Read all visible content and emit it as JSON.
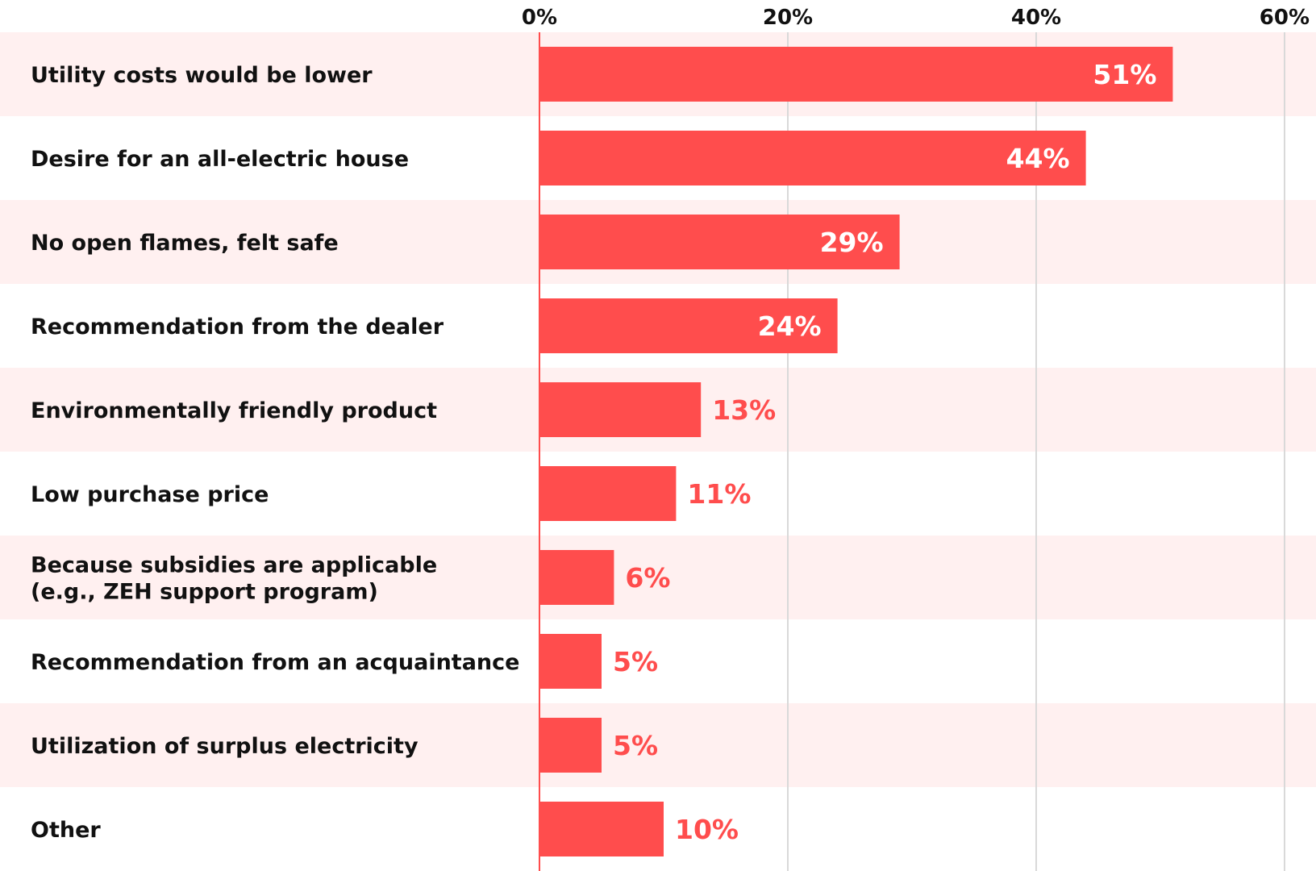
{
  "chart_data": {
    "type": "bar",
    "orientation": "horizontal",
    "categories": [
      [
        "Utility costs would be lower"
      ],
      [
        "Desire for an all-electric house"
      ],
      [
        "No open flames, felt safe"
      ],
      [
        "Recommendation from the dealer"
      ],
      [
        "Environmentally friendly product"
      ],
      [
        "Low purchase price"
      ],
      [
        "Because subsidies are applicable",
        "(e.g., ZEH support program)"
      ],
      [
        "Recommendation from an acquaintance"
      ],
      [
        "Utilization of surplus electricity"
      ],
      [
        "Other"
      ]
    ],
    "values": [
      51,
      44,
      29,
      24,
      13,
      11,
      6,
      5,
      5,
      10
    ],
    "value_labels": [
      "51%",
      "44%",
      "29%",
      "24%",
      "13%",
      "11%",
      "6%",
      "5%",
      "5%",
      "10%"
    ],
    "xlim": [
      0,
      60
    ],
    "x_ticks": [
      0,
      20,
      40,
      60
    ],
    "x_tick_labels": [
      "0%",
      "20%",
      "40%",
      "60%"
    ],
    "x_axis_position": "top",
    "grid": true,
    "title": "",
    "xlabel": "",
    "ylabel": "",
    "colors": {
      "bar": "#ff4d4d",
      "row_band": "#fff0f0",
      "axis_line": "#ff4d4d",
      "grid": "#d9d9d9",
      "label_inside": "#ffffff",
      "label_outside": "#ff4d4d",
      "text": "#111111"
    }
  }
}
